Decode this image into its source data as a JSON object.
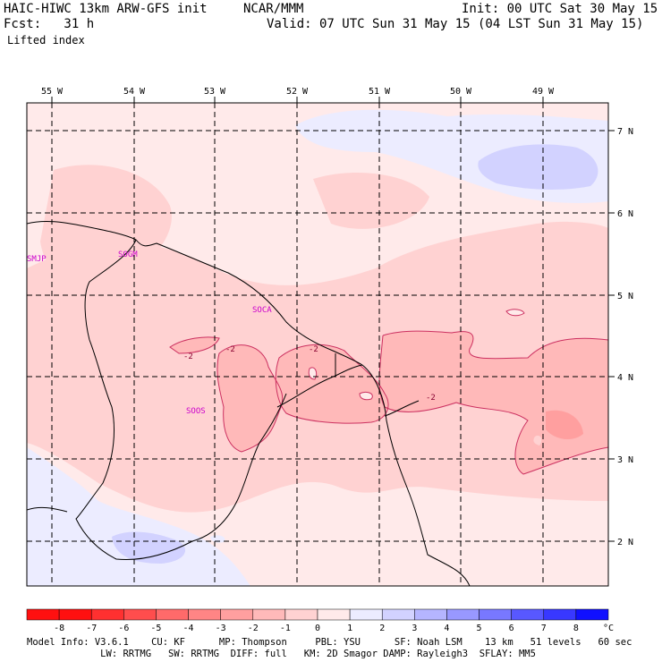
{
  "header": {
    "model": "HAIC-HIWC 13km ARW-GFS init",
    "org": "NCAR/MMM",
    "init": "Init: 00 UTC Sat 30 May 15",
    "fcst": "Fcst:   31 h",
    "valid": "Valid: 07 UTC Sun 31 May 15 (04 LST Sun 31 May 15)",
    "field": "Lifted index"
  },
  "map": {
    "lon_labels": [
      "55 W",
      "54 W",
      "53 W",
      "52 W",
      "51 W",
      "50 W",
      "49 W"
    ],
    "lat_labels": [
      "7 N",
      "6 N",
      "5 N",
      "4 N",
      "3 N",
      "2 N"
    ],
    "stations": [
      "SMJP",
      "SOGM",
      "SOCA",
      "SOOS"
    ],
    "contour_labels": [
      "-2",
      "-2",
      "-2",
      "-2"
    ]
  },
  "colorbar": {
    "labels": [
      "-8",
      "-7",
      "-6",
      "-5",
      "-4",
      "-3",
      "-2",
      "-1",
      "0",
      "1",
      "2",
      "3",
      "4",
      "5",
      "6",
      "7",
      "8"
    ],
    "unit": "°C",
    "colors": [
      "#ff1010",
      "#ff3030",
      "#ff4d4d",
      "#ff6a6a",
      "#ff8585",
      "#ff9f9f",
      "#ffb9b9",
      "#ffd2d2",
      "#ffeaea",
      "#ececff",
      "#d2d2ff",
      "#b5b5ff",
      "#9898ff",
      "#7878ff",
      "#5858ff",
      "#3838ff",
      "#1010ff"
    ]
  },
  "footer": {
    "line1": "Model Info: V3.6.1    CU: KF      MP: Thompson     PBL: YSU      SF: Noah LSM    13 km   51 levels   60 sec",
    "line2": "             LW: RRTMG   SW: RRTMG  DIFF: full   KM: 2D Smagor DAMP: Rayleigh3  SFLAY: MM5"
  }
}
